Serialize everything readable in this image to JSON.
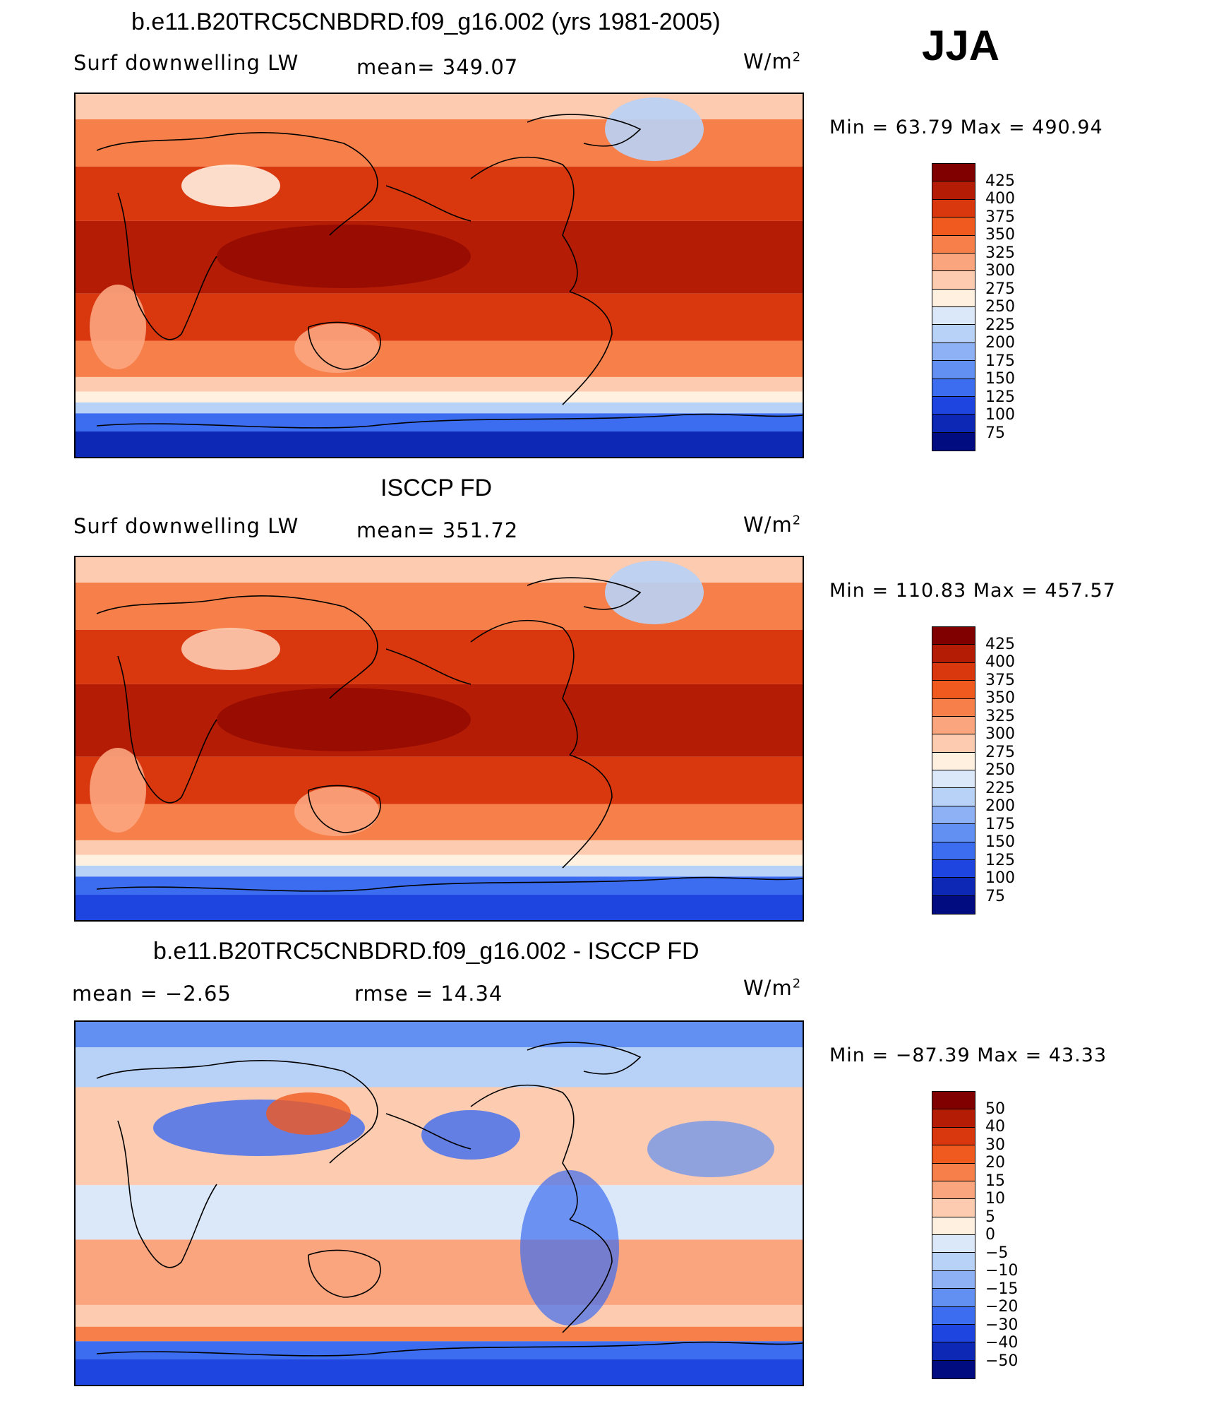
{
  "season": "JJA",
  "units": "W/m",
  "units_sup": "2",
  "panels": [
    {
      "title": "b.e11.B20TRC5CNBDRD.f09_g16.002 (yrs 1981-2005)",
      "left_label": "Surf  downwelling  LW",
      "center_label": "mean=  349.07",
      "minmax": "Min  =    63.79  Max  =  490.94",
      "field": "model",
      "colorbar": [
        "425",
        "400",
        "375",
        "350",
        "325",
        "300",
        "275",
        "250",
        "225",
        "200",
        "175",
        "150",
        "125",
        "100",
        "75"
      ]
    },
    {
      "title": "ISCCP FD",
      "left_label": "Surf  downwelling  LW",
      "center_label": "mean=  351.72",
      "minmax": "Min  =  110.83  Max  =  457.57",
      "field": "obs",
      "colorbar": [
        "425",
        "400",
        "375",
        "350",
        "325",
        "300",
        "275",
        "250",
        "225",
        "200",
        "175",
        "150",
        "125",
        "100",
        "75"
      ]
    },
    {
      "title": "b.e11.B20TRC5CNBDRD.f09_g16.002 - ISCCP FD",
      "left_label": "mean  =    −2.65",
      "center_label": "rmse  =    14.34",
      "minmax": "Min  =  −87.39  Max  =    43.33",
      "field": "diff",
      "colorbar": [
        "50",
        "40",
        "30",
        "20",
        "15",
        "10",
        "5",
        "0",
        "−5",
        "−10",
        "−15",
        "−20",
        "−30",
        "−40",
        "−50"
      ]
    }
  ],
  "palette": [
    "#800000",
    "#b51c06",
    "#d9380f",
    "#f05a1f",
    "#f7804a",
    "#fba57f",
    "#fdcbb0",
    "#fff0e0",
    "#dbe8f9",
    "#b8d1f7",
    "#8eb0f5",
    "#6190f2",
    "#3c6cf0",
    "#1f45e0",
    "#0c28b5",
    "#000c80"
  ]
}
